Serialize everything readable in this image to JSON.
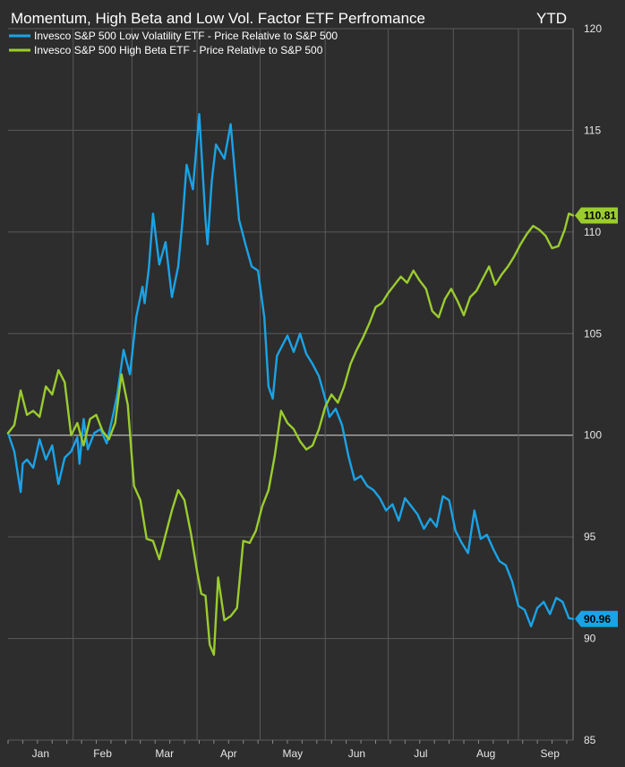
{
  "chart_data": {
    "type": "line",
    "title": "Momentum, High Beta and Low Vol. Factor ETF Perfromance",
    "period_label": "YTD",
    "xlabel": "",
    "ylabel": "",
    "ylim": [
      85,
      120
    ],
    "y_ticks": [
      "120",
      "115",
      "110",
      "105",
      "100",
      "95",
      "90",
      "85"
    ],
    "reference_line": 100,
    "x_months": [
      "Jan",
      "Feb",
      "Mar",
      "Apr",
      "May",
      "Jun",
      "Jul",
      "Aug",
      "Sep"
    ],
    "x_range_days": [
      1,
      270
    ],
    "grid": true,
    "legend_position": "top-left",
    "series": [
      {
        "name": "Invesco S&P 500 Low Volatility ETF - Price Relative to S&P 500",
        "color": "#1aa3e6",
        "end_label": "90.96",
        "x": [
          1,
          4,
          7,
          8,
          10,
          13,
          16,
          19,
          22,
          25,
          28,
          31,
          34,
          35,
          37,
          39,
          42,
          45,
          48,
          51,
          53,
          56,
          59,
          62,
          65,
          66,
          68,
          70,
          73,
          76,
          79,
          82,
          84,
          86,
          89,
          92,
          95,
          96,
          98,
          100,
          104,
          107,
          111,
          114,
          117,
          120,
          123,
          125,
          127,
          129,
          131,
          134,
          137,
          140,
          143,
          146,
          149,
          152,
          154,
          157,
          160,
          163,
          166,
          169,
          172,
          175,
          178,
          181,
          184,
          187,
          190,
          193,
          196,
          199,
          202,
          205,
          208,
          211,
          214,
          217,
          220,
          223,
          226,
          229,
          232,
          235,
          238,
          241,
          244,
          247,
          250,
          253,
          256,
          259,
          262,
          265,
          268,
          270
        ],
        "y": [
          100.1,
          99.2,
          97.2,
          98.6,
          98.8,
          98.4,
          99.8,
          98.8,
          99.5,
          97.6,
          98.9,
          99.2,
          99.9,
          98.6,
          100.8,
          99.3,
          100.1,
          100.3,
          99.6,
          101.0,
          102.0,
          104.2,
          103.0,
          105.8,
          107.3,
          106.5,
          108.2,
          110.9,
          108.4,
          109.5,
          106.8,
          108.3,
          110.5,
          113.3,
          112.1,
          115.8,
          110.6,
          109.4,
          112.5,
          114.3,
          113.6,
          115.3,
          110.6,
          109.4,
          108.3,
          108.1,
          105.8,
          102.4,
          101.8,
          103.9,
          104.3,
          104.9,
          104.1,
          105.0,
          104.0,
          103.5,
          102.9,
          101.8,
          100.9,
          101.3,
          100.5,
          99.0,
          97.8,
          98.0,
          97.5,
          97.3,
          96.9,
          96.3,
          96.6,
          95.8,
          96.9,
          96.5,
          96.1,
          95.4,
          95.9,
          95.5,
          97.0,
          96.8,
          95.3,
          94.7,
          94.2,
          96.3,
          94.9,
          95.1,
          94.4,
          93.8,
          93.6,
          92.8,
          91.6,
          91.4,
          90.6,
          91.5,
          91.8,
          91.2,
          92.0,
          91.8,
          91.0,
          90.96
        ]
      },
      {
        "name": "Invesco S&P 500 High Beta ETF - Price Relative to S&P 500",
        "color": "#9bcc2e",
        "end_label": "110.81",
        "x": [
          1,
          4,
          7,
          10,
          13,
          16,
          19,
          22,
          25,
          28,
          31,
          34,
          37,
          40,
          43,
          46,
          49,
          52,
          55,
          58,
          61,
          64,
          67,
          70,
          73,
          76,
          79,
          82,
          85,
          88,
          91,
          93,
          95,
          97,
          99,
          101,
          104,
          107,
          110,
          113,
          116,
          119,
          122,
          125,
          128,
          131,
          134,
          137,
          140,
          143,
          146,
          149,
          152,
          155,
          158,
          161,
          164,
          167,
          170,
          173,
          176,
          179,
          182,
          185,
          188,
          191,
          194,
          197,
          200,
          203,
          206,
          209,
          212,
          215,
          218,
          221,
          224,
          227,
          230,
          233,
          236,
          239,
          242,
          245,
          248,
          251,
          254,
          257,
          260,
          263,
          266,
          268,
          270
        ],
        "y": [
          100.1,
          100.5,
          102.2,
          101.0,
          101.2,
          100.9,
          102.4,
          102.0,
          103.2,
          102.6,
          100.0,
          100.6,
          99.5,
          100.8,
          101.0,
          100.2,
          99.8,
          100.6,
          103.0,
          101.5,
          97.5,
          96.8,
          94.9,
          94.8,
          93.9,
          95.1,
          96.3,
          97.3,
          96.8,
          95.2,
          93.3,
          92.2,
          92.1,
          89.7,
          89.2,
          93.0,
          90.9,
          91.1,
          91.5,
          94.8,
          94.7,
          95.3,
          96.5,
          97.3,
          99.0,
          101.2,
          100.6,
          100.3,
          99.7,
          99.3,
          99.5,
          100.3,
          101.4,
          102.0,
          101.6,
          102.4,
          103.5,
          104.2,
          104.8,
          105.5,
          106.3,
          106.5,
          107.0,
          107.4,
          107.8,
          107.5,
          108.1,
          107.6,
          107.2,
          106.1,
          105.8,
          106.7,
          107.2,
          106.6,
          105.9,
          106.8,
          107.1,
          107.7,
          108.3,
          107.4,
          107.9,
          108.3,
          108.8,
          109.4,
          109.9,
          110.3,
          110.1,
          109.8,
          109.2,
          109.3,
          110.1,
          110.9,
          110.81
        ]
      }
    ]
  }
}
